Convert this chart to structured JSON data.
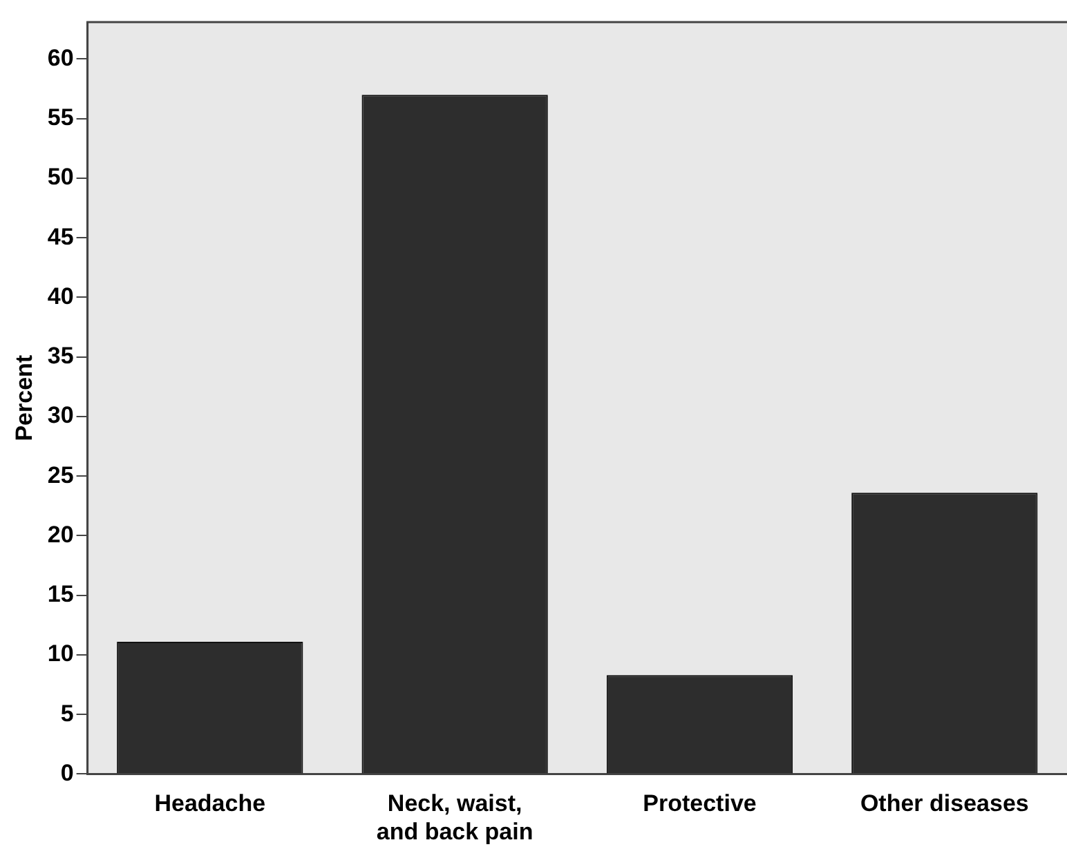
{
  "chart_data": {
    "type": "bar",
    "ylabel": "Percent",
    "categories": [
      "Headache",
      "Neck, waist,\nand back pain",
      "Protective",
      "Other diseases"
    ],
    "values": [
      11.1,
      57.0,
      8.3,
      23.6
    ],
    "color": "#2d2d2d",
    "ylim": [
      0,
      63.1
    ],
    "yticks": [
      0,
      5,
      10,
      15,
      20,
      25,
      30,
      35,
      40,
      45,
      50,
      55,
      60
    ],
    "grid": false,
    "legend": false
  }
}
